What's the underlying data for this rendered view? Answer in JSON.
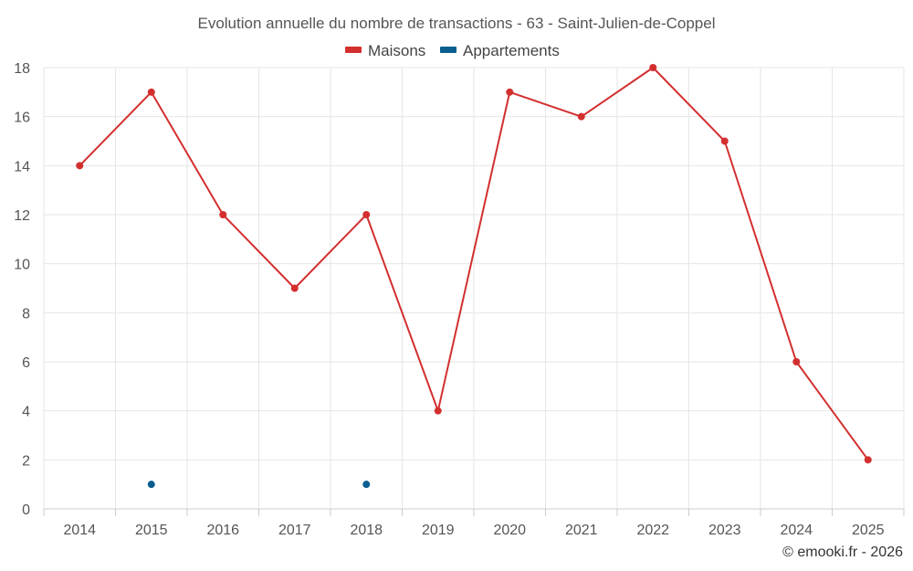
{
  "chart_data": {
    "type": "line",
    "title": "Evolution annuelle du nombre de transactions - 63 - Saint-Julien-de-Coppel",
    "xlabel": "",
    "ylabel": "",
    "categories": [
      "2014",
      "2015",
      "2016",
      "2017",
      "2018",
      "2019",
      "2020",
      "2021",
      "2022",
      "2023",
      "2024",
      "2025"
    ],
    "ylim": [
      0,
      18
    ],
    "yticks": [
      0,
      2,
      4,
      6,
      8,
      10,
      12,
      14,
      16,
      18
    ],
    "grid": true,
    "legend_position": "top-center",
    "series": [
      {
        "name": "Maisons",
        "color": "#d32f2f",
        "values": [
          14,
          17,
          12,
          9,
          12,
          4,
          17,
          16,
          18,
          15,
          6,
          2
        ]
      },
      {
        "name": "Appartements",
        "color": "#0a5e8f",
        "values": [
          null,
          1,
          null,
          null,
          1,
          null,
          null,
          null,
          null,
          null,
          null,
          null
        ]
      }
    ]
  },
  "credit": "© emooki.fr - 2026"
}
